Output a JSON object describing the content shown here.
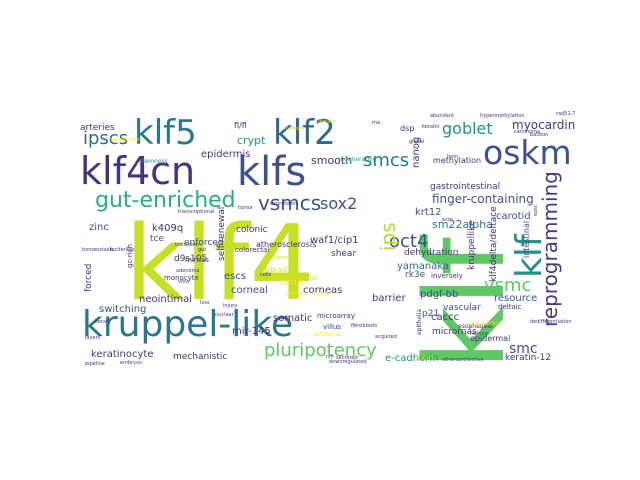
{
  "words": [
    {
      "text": "klf4",
      "color": "#c8df27"
    },
    {
      "text": "klf",
      "color": "#5ec962"
    },
    {
      "text": "kruppel-like",
      "color": "#2a788e"
    },
    {
      "text": "klf4cn",
      "color": "#46327e"
    },
    {
      "text": "klfs",
      "color": "#3b528b"
    },
    {
      "text": "klf5",
      "color": "#2a788e"
    },
    {
      "text": "klf2",
      "color": "#31688e"
    },
    {
      "text": "oskm",
      "color": "#3b528b"
    },
    {
      "text": "klf",
      "color": "#21918c"
    },
    {
      "text": "reprogramming",
      "color": "#443983"
    },
    {
      "text": "gut-enriched",
      "color": "#29af7f"
    },
    {
      "text": "vsmcs",
      "color": "#3b528b"
    },
    {
      "text": "ipscs",
      "color": "#31688e"
    },
    {
      "text": "pluripotency",
      "color": "#5ec962"
    },
    {
      "text": "smcs",
      "color": "#2a788e"
    },
    {
      "text": "oct4",
      "color": "#3b528b"
    },
    {
      "text": "goblet",
      "color": "#21918c"
    },
    {
      "text": "sox2",
      "color": "#3b528b"
    },
    {
      "text": "vsmc",
      "color": "#5ec962"
    },
    {
      "text": "myocardin",
      "color": "#443983"
    },
    {
      "text": "ips",
      "color": "#b5de2b"
    },
    {
      "text": "finger-containing",
      "color": "#3b528b"
    },
    {
      "text": "smc",
      "color": "#3b528b"
    },
    {
      "text": "epidermis",
      "color": "#443983"
    },
    {
      "text": "crypt",
      "color": "#21918c"
    },
    {
      "text": "smooth",
      "color": "#46327e"
    },
    {
      "text": "waf1/cip1",
      "color": "#46327e"
    },
    {
      "text": "krt12",
      "color": "#3b528b"
    },
    {
      "text": "sm22alpha",
      "color": "#2a788e"
    },
    {
      "text": "carotid",
      "color": "#3b528b"
    },
    {
      "text": "zinc",
      "color": "#3b528b"
    },
    {
      "text": "k409q",
      "color": "#46327e"
    },
    {
      "text": "colonic",
      "color": "#46327e"
    },
    {
      "text": "tce",
      "color": "#3b528b"
    },
    {
      "text": "enforced",
      "color": "#3b528b"
    },
    {
      "text": "yamanaka",
      "color": "#31688e"
    },
    {
      "text": "dehydration",
      "color": "#443983"
    },
    {
      "text": "pdgf-bb",
      "color": "#3b528b"
    },
    {
      "text": "escs",
      "color": "#3b528b"
    },
    {
      "text": "corneal",
      "color": "#3b528b"
    },
    {
      "text": "corneas",
      "color": "#46327e"
    },
    {
      "text": "barrier",
      "color": "#46327e"
    },
    {
      "text": "vascular",
      "color": "#3b528b"
    },
    {
      "text": "resource",
      "color": "#3b528b"
    },
    {
      "text": "somatic",
      "color": "#46327e"
    },
    {
      "text": "switching",
      "color": "#3b528b"
    },
    {
      "text": "neointimal",
      "color": "#46327e"
    },
    {
      "text": "mir-145",
      "color": "#46327e"
    },
    {
      "text": "caccc",
      "color": "#46327e"
    },
    {
      "text": "micrornas",
      "color": "#443983"
    },
    {
      "text": "keratinocyte",
      "color": "#443983"
    },
    {
      "text": "mechanistic",
      "color": "#46327e"
    },
    {
      "text": "e-cadherin",
      "color": "#21918c"
    },
    {
      "text": "keratin-12",
      "color": "#46327e"
    },
    {
      "text": "arteries",
      "color": "#46327e"
    },
    {
      "text": "d9s105",
      "color": "#46327e"
    },
    {
      "text": "monocyte",
      "color": "#46327e"
    },
    {
      "text": "mirnas",
      "color": "#46327e"
    },
    {
      "text": "forced",
      "color": "#46327e"
    },
    {
      "text": "shear",
      "color": "#46327e"
    },
    {
      "text": "self-renewal",
      "color": "#46327e"
    },
    {
      "text": "atherosclerosis",
      "color": "#46327e"
    },
    {
      "text": "microarray",
      "color": "#46327e"
    },
    {
      "text": "villus",
      "color": "#46327e"
    },
    {
      "text": "colorectal",
      "color": "#46327e"
    },
    {
      "text": "rk3e",
      "color": "#3b528b"
    },
    {
      "text": "p21",
      "color": "#3b528b"
    },
    {
      "text": "gastrointestinal",
      "color": "#46327e"
    },
    {
      "text": "methylation",
      "color": "#46327e"
    },
    {
      "text": "epidermal",
      "color": "#46327e"
    },
    {
      "text": "esophageal",
      "color": "#46327e"
    },
    {
      "text": "inversely",
      "color": "#46327e"
    },
    {
      "text": "deltaic",
      "color": "#46327e"
    },
    {
      "text": "intestinal",
      "color": "#3b528b"
    },
    {
      "text": "kruppellike",
      "color": "#46327e"
    },
    {
      "text": "klf4delta/deltace",
      "color": "#46327e"
    },
    {
      "text": "nanog",
      "color": "#46327e"
    },
    {
      "text": "dsp",
      "color": "#46327e"
    },
    {
      "text": "fl/fl",
      "color": "#46327e"
    },
    {
      "text": "skin",
      "color": "#b5de2b"
    },
    {
      "text": "octr4",
      "color": "#fde725"
    },
    {
      "text": "squamous",
      "color": "#fde725"
    },
    {
      "text": "epiblast",
      "color": "#d0e11c"
    },
    {
      "text": "rejuvenation",
      "color": "#d0e11c"
    },
    {
      "text": "regenerative",
      "color": "#22a884"
    },
    {
      "text": "stemness",
      "color": "#21918c"
    },
    {
      "text": "gc-rich",
      "color": "#46327e"
    },
    {
      "text": "luciferase",
      "color": "#46327e"
    },
    {
      "text": "homeostasis",
      "color": "#46327e"
    },
    {
      "text": "library",
      "color": "#46327e"
    },
    {
      "text": "layers",
      "color": "#46327e"
    },
    {
      "text": "pipeline",
      "color": "#46327e"
    },
    {
      "text": "embryos",
      "color": "#46327e"
    },
    {
      "text": "epithelia",
      "color": "#46327e"
    },
    {
      "text": "hypermethylation",
      "color": "#46327e"
    },
    {
      "text": "balloon",
      "color": "#46327e"
    },
    {
      "text": "rad51.7",
      "color": "#46327e"
    },
    {
      "text": "epsc",
      "color": "#46327e"
    },
    {
      "text": "carcinoma",
      "color": "#46327e"
    },
    {
      "text": "dedifferentiation",
      "color": "#46327e"
    },
    {
      "text": "atheroprotective",
      "color": "#46327e"
    },
    {
      "text": "downregulated",
      "color": "#46327e"
    },
    {
      "text": "transcriptional",
      "color": "#46327e"
    },
    {
      "text": "gut",
      "color": "#46327e"
    },
    {
      "text": "tumor",
      "color": "#46327e"
    },
    {
      "text": "adenoma",
      "color": "#46327e"
    },
    {
      "text": "transition",
      "color": "#46327e"
    },
    {
      "text": "vitro",
      "color": "#46327e"
    },
    {
      "text": "injury",
      "color": "#46327e"
    },
    {
      "text": "fibroblasts",
      "color": "#46327e"
    },
    {
      "text": "lentiviral",
      "color": "#fde725"
    },
    {
      "text": "epigenetic",
      "color": "#d0e11c"
    },
    {
      "text": "mesenchymal",
      "color": "#fde725"
    },
    {
      "text": "retinoic",
      "color": "#46327e"
    },
    {
      "text": "hem",
      "color": "#46327e"
    },
    {
      "text": "ecm",
      "color": "#46327e"
    },
    {
      "text": "loss",
      "color": "#46327e"
    },
    {
      "text": "nuclear",
      "color": "#46327e"
    },
    {
      "text": "cocktail",
      "color": "#fde725"
    },
    {
      "text": "markers",
      "color": "#d0e11c"
    },
    {
      "text": "expression",
      "color": "#46327e"
    },
    {
      "text": "nih",
      "color": "#46327e"
    },
    {
      "text": "global",
      "color": "#46327e"
    },
    {
      "text": "keratin",
      "color": "#46327e"
    },
    {
      "text": "acquired",
      "color": "#46327e"
    },
    {
      "text": "secreted",
      "color": "#46327e"
    },
    {
      "text": "abundant",
      "color": "#46327e"
    },
    {
      "text": "rna",
      "color": "#46327e"
    },
    {
      "text": "dietary",
      "color": "#d0e11c"
    },
    {
      "text": "genome",
      "color": "#fde725"
    },
    {
      "text": "cells",
      "color": "#46327e"
    }
  ]
}
